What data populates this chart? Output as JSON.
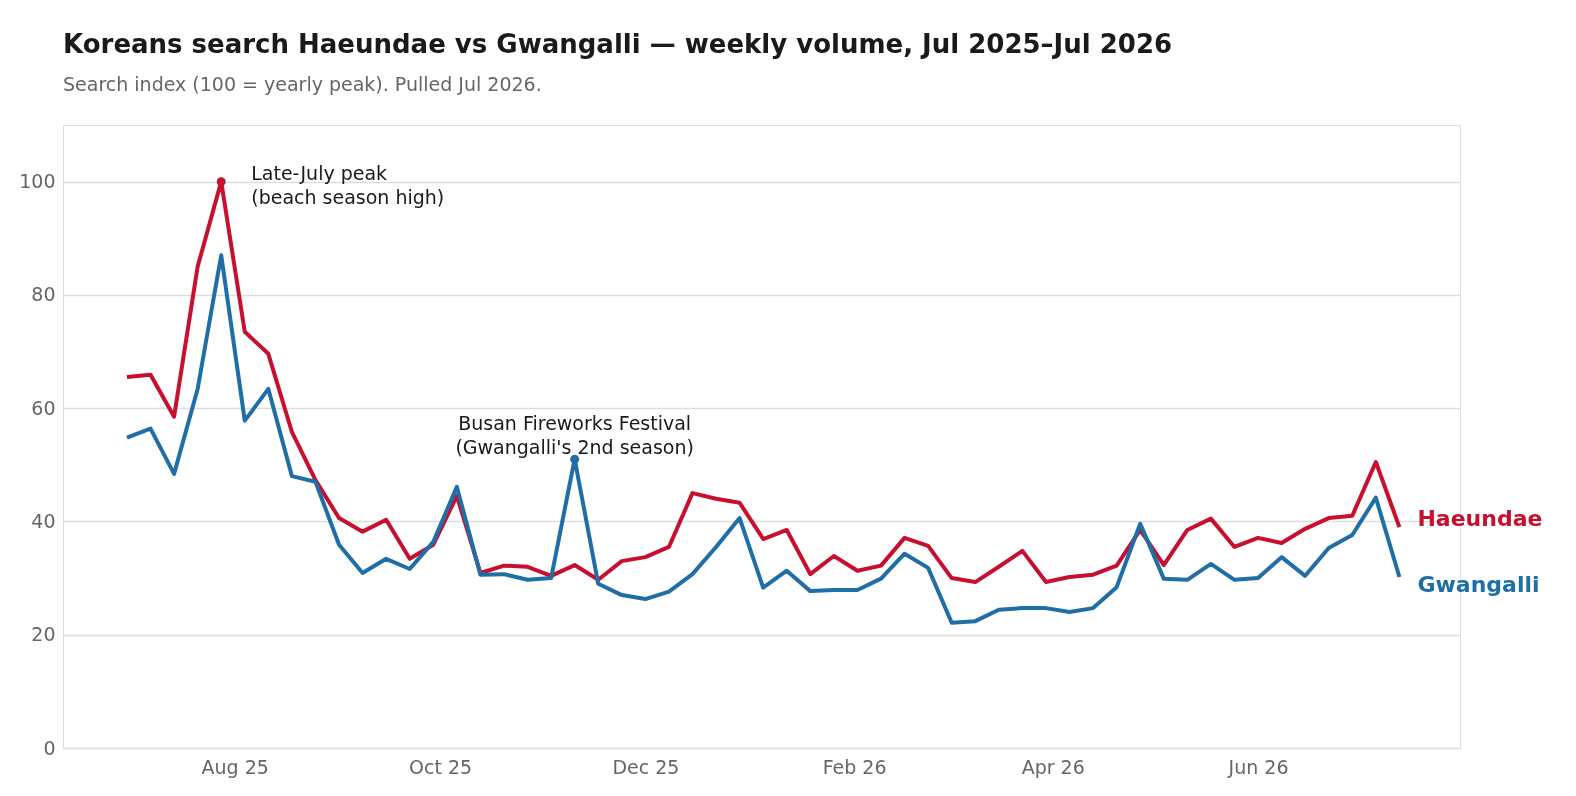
{
  "chart_data": {
    "type": "line",
    "title": "Koreans search Haeundae vs Gwangalli — weekly volume, Jul 2025–Jul 2026",
    "subtitle": "Search index (100 = yearly peak). Pulled Jul 2026.",
    "x": [
      "2025-06-30",
      "2025-07-07",
      "2025-07-14",
      "2025-07-21",
      "2025-07-28",
      "2025-08-04",
      "2025-08-11",
      "2025-08-18",
      "2025-08-25",
      "2025-09-01",
      "2025-09-08",
      "2025-09-15",
      "2025-09-22",
      "2025-09-29",
      "2025-10-06",
      "2025-10-13",
      "2025-10-20",
      "2025-10-27",
      "2025-11-03",
      "2025-11-10",
      "2025-11-17",
      "2025-11-24",
      "2025-12-01",
      "2025-12-08",
      "2025-12-15",
      "2025-12-22",
      "2025-12-29",
      "2026-01-05",
      "2026-01-12",
      "2026-01-19",
      "2026-01-26",
      "2026-02-02",
      "2026-02-09",
      "2026-02-16",
      "2026-02-23",
      "2026-03-02",
      "2026-03-09",
      "2026-03-16",
      "2026-03-23",
      "2026-03-30",
      "2026-04-06",
      "2026-04-13",
      "2026-04-20",
      "2026-04-27",
      "2026-05-04",
      "2026-05-11",
      "2026-05-18",
      "2026-05-25",
      "2026-06-01",
      "2026-06-08",
      "2026-06-15",
      "2026-06-22",
      "2026-06-29",
      "2026-07-06",
      "2026-07-13"
    ],
    "series": [
      {
        "name": "Haeundae",
        "color": "#c8102e",
        "values": [
          65.5,
          65.9,
          58.5,
          85,
          100,
          73.5,
          69.6,
          55.8,
          47.3,
          40.6,
          38.2,
          40.3,
          33.4,
          35.9,
          44.5,
          30.9,
          32.2,
          32,
          30.4,
          32.3,
          29.7,
          33,
          33.7,
          35.5,
          45,
          44,
          43.3,
          36.9,
          38.5,
          30.7,
          33.9,
          31.3,
          32.2,
          37.1,
          35.7,
          30,
          29.3,
          32,
          34.8,
          29.3,
          30.2,
          30.6,
          32.2,
          38.5,
          32.3,
          38.5,
          40.5,
          35.5,
          37.1,
          36.2,
          38.7,
          40.6,
          41,
          50.5,
          39
        ]
      },
      {
        "name": "Gwangalli",
        "color": "#1f6ea8",
        "values": [
          54.8,
          56.4,
          48.4,
          63.4,
          87,
          57.8,
          63.4,
          48,
          47,
          35.9,
          30.9,
          33.4,
          31.6,
          36.4,
          46.1,
          30.6,
          30.7,
          29.7,
          30,
          51,
          29,
          27,
          26.3,
          27.6,
          30.7,
          35.5,
          40.6,
          28.3,
          31.3,
          27.7,
          27.9,
          27.9,
          29.9,
          34.3,
          31.8,
          22.1,
          22.4,
          24.4,
          24.7,
          24.7,
          24,
          24.7,
          28.4,
          39.6,
          29.9,
          29.7,
          32.5,
          29.7,
          30,
          33.7,
          30.4,
          35.3,
          37.6,
          44.2,
          30.2
        ]
      }
    ],
    "annotations": [
      {
        "text": "Late-July peak\n(beach season high)",
        "x": "2025-07-28",
        "y": 100
      },
      {
        "text": "Busan Fireworks Festival\n(Gwangalli's 2nd season)",
        "x": "2025-11-10",
        "y": 51
      }
    ],
    "xlim": [
      "2025-06-11",
      "2026-07-31"
    ],
    "xticks": [
      {
        "value": "2025-08-01",
        "label": "Aug 25"
      },
      {
        "value": "2025-10-01",
        "label": "Oct 25"
      },
      {
        "value": "2025-12-01",
        "label": "Dec 25"
      },
      {
        "value": "2026-02-01",
        "label": "Feb 26"
      },
      {
        "value": "2026-04-01",
        "label": "Apr 26"
      },
      {
        "value": "2026-06-01",
        "label": "Jun 26"
      }
    ],
    "ylim": [
      0,
      110
    ],
    "yticks": [
      0,
      20,
      40,
      60,
      80,
      100
    ],
    "grid": "y",
    "legend": false,
    "marker": "none",
    "line_style": "solid"
  }
}
